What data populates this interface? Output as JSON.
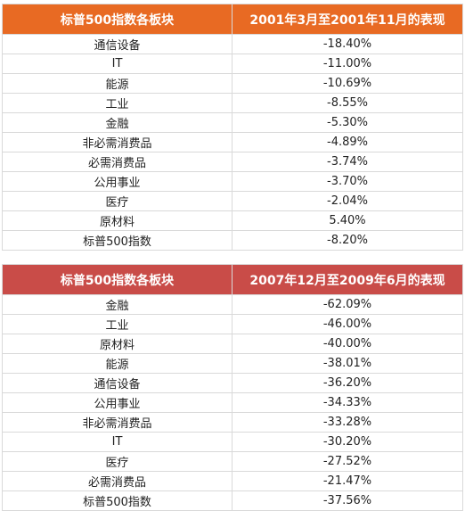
{
  "table1": {
    "header_color": "#e86a23",
    "headers": [
      "标普500指数各板块",
      "2001年3月至2001年11月的表现"
    ],
    "rows": [
      [
        "通信设备",
        "-18.40%"
      ],
      [
        "IT",
        "-11.00%"
      ],
      [
        "能源",
        "-10.69%"
      ],
      [
        "工业",
        "-8.55%"
      ],
      [
        "金融",
        "-5.30%"
      ],
      [
        "非必需消费品",
        "-4.89%"
      ],
      [
        "必需消费品",
        "-3.74%"
      ],
      [
        "公用事业",
        "-3.70%"
      ],
      [
        "医疗",
        "-2.04%"
      ],
      [
        "原材料",
        "5.40%"
      ],
      [
        "标普500指数",
        "-8.20%"
      ]
    ]
  },
  "table2": {
    "header_color": "#c94c48",
    "headers": [
      "标普500指数各板块",
      "2007年12月至2009年6月的表现"
    ],
    "rows": [
      [
        "金融",
        "-62.09%"
      ],
      [
        "工业",
        "-46.00%"
      ],
      [
        "原材料",
        "-40.00%"
      ],
      [
        "能源",
        "-38.01%"
      ],
      [
        "通信设备",
        "-36.20%"
      ],
      [
        "公用事业",
        "-34.33%"
      ],
      [
        "非必需消费品",
        "-33.28%"
      ],
      [
        "IT",
        "-30.20%"
      ],
      [
        "医疗",
        "-27.52%"
      ],
      [
        "必需消费品",
        "-21.47%"
      ],
      [
        "标普500指数",
        "-37.56%"
      ]
    ]
  }
}
